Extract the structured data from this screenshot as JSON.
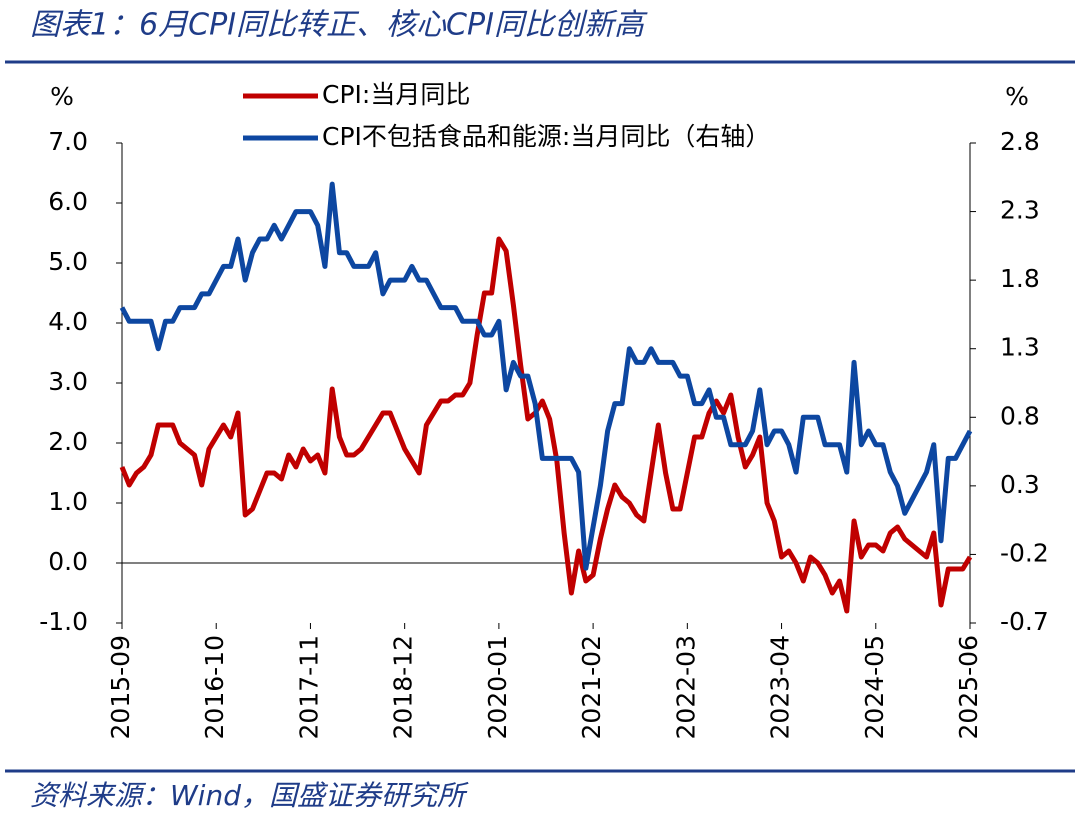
{
  "chart_data": {
    "type": "line",
    "title": "图表1：6月CPI同比转正、核心CPI同比创新高",
    "source": "资料来源：Wind，国盛证券研究所",
    "y_unit": "%",
    "y2_unit": "%",
    "categories": [
      "2015-09",
      null,
      null,
      null,
      null,
      null,
      null,
      null,
      null,
      null,
      null,
      null,
      null,
      "2016-10",
      null,
      null,
      null,
      null,
      null,
      null,
      null,
      null,
      null,
      null,
      null,
      null,
      "2017-11",
      null,
      null,
      null,
      null,
      null,
      null,
      null,
      null,
      null,
      null,
      null,
      null,
      "2018-12",
      null,
      null,
      null,
      null,
      null,
      null,
      null,
      null,
      null,
      null,
      null,
      null,
      "2020-01",
      null,
      null,
      null,
      null,
      null,
      null,
      null,
      null,
      null,
      null,
      null,
      null,
      "2021-02",
      null,
      null,
      null,
      null,
      null,
      null,
      null,
      null,
      null,
      null,
      null,
      null,
      "2022-03",
      null,
      null,
      null,
      null,
      null,
      null,
      null,
      null,
      null,
      null,
      null,
      null,
      "2023-04",
      null,
      null,
      null,
      null,
      null,
      null,
      null,
      null,
      null,
      null,
      null,
      null,
      "2024-05",
      null,
      null,
      null,
      null,
      null,
      null,
      null,
      null,
      null,
      null,
      null,
      null,
      "2025-06"
    ],
    "series": [
      {
        "name": "CPI:当月同比",
        "color": "#c00000",
        "values": [
          1.6,
          1.3,
          1.5,
          1.6,
          1.8,
          2.3,
          2.3,
          2.3,
          2.0,
          1.9,
          1.8,
          1.3,
          1.9,
          2.1,
          2.3,
          2.1,
          2.5,
          0.8,
          0.9,
          1.2,
          1.5,
          1.5,
          1.4,
          1.8,
          1.6,
          1.9,
          1.7,
          1.8,
          1.5,
          2.9,
          2.1,
          1.8,
          1.8,
          1.9,
          2.1,
          2.3,
          2.5,
          2.5,
          2.2,
          1.9,
          1.7,
          1.5,
          2.3,
          2.5,
          2.7,
          2.7,
          2.8,
          2.8,
          3.0,
          3.8,
          4.5,
          4.5,
          5.4,
          5.2,
          4.3,
          3.3,
          2.4,
          2.5,
          2.7,
          2.4,
          1.7,
          0.5,
          -0.5,
          0.2,
          -0.3,
          -0.2,
          0.4,
          0.9,
          1.3,
          1.1,
          1.0,
          0.8,
          0.7,
          1.5,
          2.3,
          1.5,
          0.9,
          0.9,
          1.5,
          2.1,
          2.1,
          2.5,
          2.7,
          2.5,
          2.8,
          2.1,
          1.6,
          1.8,
          2.1,
          1.0,
          0.7,
          0.1,
          0.2,
          0.0,
          -0.3,
          0.1,
          0.0,
          -0.2,
          -0.5,
          -0.3,
          -0.8,
          0.7,
          0.1,
          0.3,
          0.3,
          0.2,
          0.5,
          0.6,
          0.4,
          0.3,
          0.2,
          0.1,
          0.5,
          -0.7,
          -0.1,
          -0.1,
          -0.1,
          0.1
        ]
      },
      {
        "name": "CPI不包括食品和能源:当月同比（右轴）",
        "color": "#0d47a1",
        "axis": "y2",
        "values": [
          1.6,
          1.5,
          1.5,
          1.5,
          1.5,
          1.3,
          1.5,
          1.5,
          1.6,
          1.6,
          1.6,
          1.7,
          1.7,
          1.8,
          1.9,
          1.9,
          2.1,
          1.8,
          2.0,
          2.1,
          2.1,
          2.2,
          2.1,
          2.2,
          2.3,
          2.3,
          2.3,
          2.2,
          1.9,
          2.5,
          2.0,
          2.0,
          1.9,
          1.9,
          1.9,
          2.0,
          1.7,
          1.8,
          1.8,
          1.8,
          1.9,
          1.8,
          1.8,
          1.7,
          1.6,
          1.6,
          1.6,
          1.5,
          1.5,
          1.5,
          1.4,
          1.4,
          1.5,
          1.0,
          1.2,
          1.1,
          1.1,
          0.9,
          0.5,
          0.5,
          0.5,
          0.5,
          0.5,
          0.4,
          -0.3,
          0.0,
          0.3,
          0.7,
          0.9,
          0.9,
          1.3,
          1.2,
          1.2,
          1.3,
          1.2,
          1.2,
          1.2,
          1.1,
          1.1,
          0.9,
          0.9,
          1.0,
          0.8,
          0.8,
          0.6,
          0.6,
          0.6,
          0.7,
          1.0,
          0.6,
          0.7,
          0.7,
          0.6,
          0.4,
          0.8,
          0.8,
          0.8,
          0.6,
          0.6,
          0.6,
          0.4,
          1.2,
          0.6,
          0.7,
          0.6,
          0.6,
          0.4,
          0.3,
          0.1,
          0.2,
          0.3,
          0.4,
          0.6,
          -0.1,
          0.5,
          0.5,
          0.6,
          0.7
        ]
      }
    ],
    "ylim": [
      -1,
      7
    ],
    "yticks": [
      {
        "value": -1,
        "label": "-1.0"
      },
      {
        "value": 0,
        "label": "0.0"
      },
      {
        "value": 1,
        "label": "1.0"
      },
      {
        "value": 2,
        "label": "2.0"
      },
      {
        "value": 3,
        "label": "3.0"
      },
      {
        "value": 4,
        "label": "4.0"
      },
      {
        "value": 5,
        "label": "5.0"
      },
      {
        "value": 6,
        "label": "6.0"
      },
      {
        "value": 7,
        "label": "7.0"
      }
    ],
    "y2lim": [
      -0.7,
      2.8
    ],
    "y2ticks": [
      -0.7,
      -0.2,
      0.3,
      0.8,
      1.3,
      1.8,
      2.3,
      2.8
    ],
    "grid": false
  }
}
